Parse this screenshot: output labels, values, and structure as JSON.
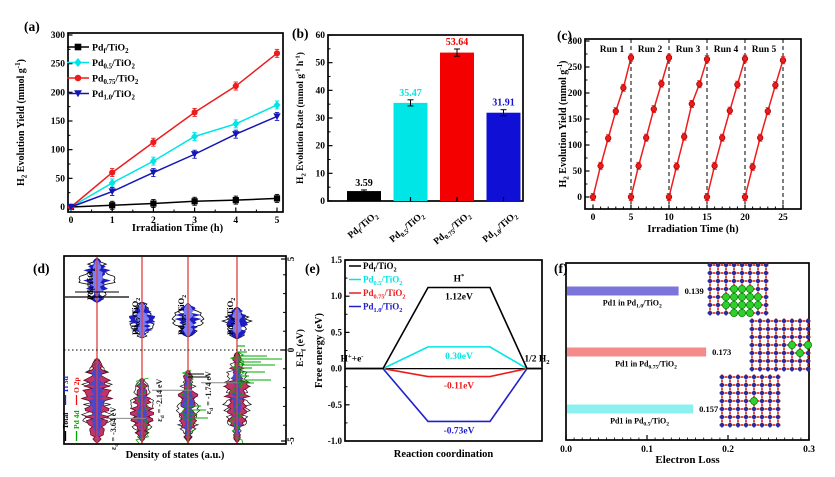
{
  "figure": {
    "background": "#ffffff"
  },
  "chart_data": [
    {
      "id": "a",
      "panel": "(a)",
      "type": "line",
      "xlabel": "Irradiation Time (h)",
      "ylabel": "H_{2} Evolution Yield (mmol g^{-1})",
      "xlim": [
        0,
        5
      ],
      "ylim": [
        0,
        300
      ],
      "xticks": [
        0,
        1,
        2,
        3,
        4,
        5
      ],
      "yticks": [
        0,
        50,
        100,
        150,
        200,
        250,
        300
      ],
      "x": [
        0,
        1,
        2,
        3,
        4,
        5
      ],
      "series": [
        {
          "name": "Pd_{f}/TiO_{2}",
          "color": "#000000",
          "marker": "square",
          "values": [
            0,
            3,
            6,
            10,
            12,
            15
          ]
        },
        {
          "name": "Pd_{0.5}/TiO_{2}",
          "color": "#00e5e5",
          "marker": "diamond",
          "values": [
            0,
            42,
            80,
            123,
            145,
            178
          ]
        },
        {
          "name": "Pd_{0.75}/TiO_{2}",
          "color": "#ed1c1c",
          "marker": "circle",
          "values": [
            0,
            60,
            113,
            165,
            211,
            268
          ]
        },
        {
          "name": "Pd_{1.0}/TiO_{2}",
          "color": "#1515b5",
          "marker": "triangle-down",
          "values": [
            0,
            27,
            60,
            92,
            127,
            158
          ]
        }
      ]
    },
    {
      "id": "b",
      "panel": "(b)",
      "type": "bar",
      "ylabel": "H_{2} Evolution Rate (mmol g^{-1} h^{-1})",
      "ylim": [
        0,
        60
      ],
      "yticks": [
        0,
        10,
        20,
        30,
        40,
        50,
        60
      ],
      "categories": [
        "Pd_{f}/TiO_{2}",
        "Pd_{0.5}/TiO_{2}",
        "Pd_{0.75}/TiO_{2}",
        "Pd_{1.0}/TiO_{2}"
      ],
      "values": [
        3.59,
        35.47,
        53.64,
        31.91
      ],
      "value_labels": [
        "3.59",
        "35.47",
        "53.64",
        "31.91"
      ],
      "colors": [
        "#000000",
        "#00e5e5",
        "#f40000",
        "#0f0fd6"
      ],
      "errors": [
        0.4,
        1.1,
        1.3,
        1.1
      ]
    },
    {
      "id": "c",
      "panel": "(c)",
      "type": "line-cycling",
      "xlabel": "Irradiation Time (h)",
      "ylabel": "H_{2} Evolution Yield (mmol g^{-1})",
      "xlim": [
        0,
        25
      ],
      "ylim": [
        0,
        300
      ],
      "xticks": [
        0,
        5,
        10,
        15,
        20,
        25
      ],
      "yticks": [
        0,
        50,
        100,
        150,
        200,
        250,
        300
      ],
      "color": "#ed1c1c",
      "marker": "circle",
      "separator_lines": [
        5,
        10,
        15,
        20,
        25
      ],
      "runs": [
        {
          "label": "Run 1",
          "start": 0,
          "values": [
            0,
            60,
            113,
            165,
            210,
            268
          ]
        },
        {
          "label": "Run 2",
          "start": 5,
          "values": [
            0,
            60,
            114,
            169,
            218,
            268
          ]
        },
        {
          "label": "Run 3",
          "start": 10,
          "values": [
            0,
            59,
            116,
            179,
            217,
            265
          ]
        },
        {
          "label": "Run 4",
          "start": 15,
          "values": [
            0,
            60,
            114,
            166,
            216,
            266
          ]
        },
        {
          "label": "Run 5",
          "start": 20,
          "values": [
            0,
            58,
            114,
            165,
            215,
            263
          ]
        }
      ]
    },
    {
      "id": "d",
      "panel": "(d)",
      "type": "dos",
      "xlabel": "Density of states (a.u.)",
      "ylabel_right": "E-E_{f} (eV)",
      "ylim": [
        -5,
        5
      ],
      "yticks_right": [
        5,
        0,
        -5
      ],
      "fermi_level": 0,
      "legend": [
        {
          "label": "Total",
          "color": "#000000"
        },
        {
          "label": "Ti 3d",
          "color": "#2222cc"
        },
        {
          "label": "O 2p",
          "color": "#ee1111"
        },
        {
          "label": "Pd 4d",
          "color": "#00aa00"
        }
      ],
      "columns": [
        {
          "label": "Pd_{f}/TiO_{2}",
          "epsilon_d": null,
          "epsilon_label": "",
          "has_pd_states": false
        },
        {
          "label": "Pd_{0.5}/TiO_{2}",
          "epsilon_d": -3.64,
          "epsilon_label": "ε_{d} = -3.64 eV",
          "has_pd_states": true
        },
        {
          "label": "Pd_{0.75}/TiO_{2}",
          "epsilon_d": -2.14,
          "epsilon_label": "ε_{d} = -2.14 eV",
          "has_pd_states": true
        },
        {
          "label": "Pd_{1.0}/TiO_{2}",
          "epsilon_d": -1.74,
          "epsilon_label": "ε_{d} = -1.74 eV",
          "has_pd_states": true
        }
      ]
    },
    {
      "id": "e",
      "panel": "(e)",
      "type": "energy-diagram",
      "xlabel": "Reaction coordination",
      "ylabel": "Free energy (eV)",
      "ylim": [
        -1.0,
        1.5
      ],
      "yticks": [
        "-1.0",
        "-0.5",
        "0.0",
        "0.5",
        "1.0",
        "1.5"
      ],
      "states": [
        "H^{+}+e^{-}",
        "H^{*}",
        "1/2 H_{2}"
      ],
      "series": [
        {
          "name": "Pd_{f}/TiO_{2}",
          "color": "#000000",
          "delta_g": 1.12,
          "label": "1.12eV"
        },
        {
          "name": "Pd_{0.5}/TiO_{2}",
          "color": "#00e5e5",
          "delta_g": 0.3,
          "label": "0.30eV"
        },
        {
          "name": "Pd_{0.75}/TiO_{2}",
          "color": "#ed1c1c",
          "delta_g": -0.11,
          "label": "-0.11eV"
        },
        {
          "name": "Pd_{1.0}/TiO_{2}",
          "color": "#2121cc",
          "delta_g": -0.73,
          "label": "-0.73eV"
        }
      ]
    },
    {
      "id": "f",
      "panel": "(f)",
      "type": "hbar",
      "xlabel": "Electron Loss",
      "xlim": [
        0,
        0.3
      ],
      "xticks": [
        "0.0",
        "0.1",
        "0.2",
        "0.3"
      ],
      "bars": [
        {
          "name": "Pd1 in Pd_{1.0}/TiO_{2}",
          "value": 0.139,
          "label": "0.139",
          "color": "#7b74da",
          "inset": "tio2-lattice-pd-cluster-large"
        },
        {
          "name": "Pd1 in Pd_{0.75}/TiO_{2}",
          "value": 0.173,
          "label": "0.173",
          "color": "#f48a8a",
          "inset": "tio2-lattice-pd-cluster-small"
        },
        {
          "name": "Pd1 in Pd_{0.5}/TiO_{2}",
          "value": 0.157,
          "label": "0.157",
          "color": "#8bf0ef",
          "inset": "tio2-lattice-pd-single-atom"
        }
      ]
    }
  ]
}
